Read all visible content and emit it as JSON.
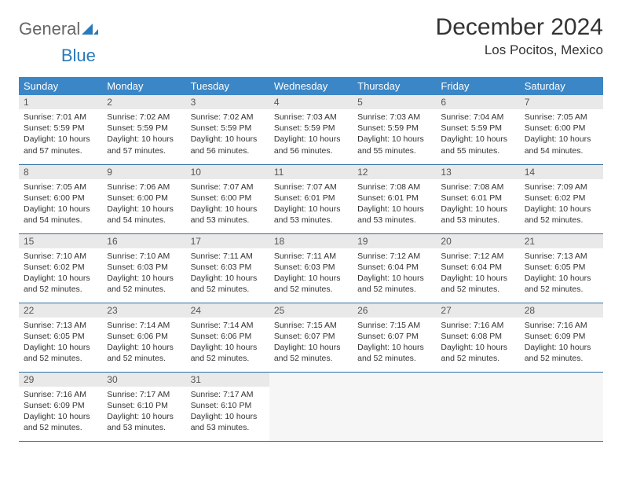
{
  "brand": {
    "part1": "General",
    "part2": "Blue"
  },
  "title": "December 2024",
  "location": "Los Pocitos, Mexico",
  "colors": {
    "header_bg": "#3b86c6",
    "header_text": "#ffffff",
    "row_border": "#2f6fa3",
    "daynum_bg": "#e9e9e9",
    "logo_accent": "#2a7ab9"
  },
  "weekdays": [
    "Sunday",
    "Monday",
    "Tuesday",
    "Wednesday",
    "Thursday",
    "Friday",
    "Saturday"
  ],
  "days": [
    {
      "n": "1",
      "sunrise": "7:01 AM",
      "sunset": "5:59 PM",
      "daylight": "10 hours and 57 minutes."
    },
    {
      "n": "2",
      "sunrise": "7:02 AM",
      "sunset": "5:59 PM",
      "daylight": "10 hours and 57 minutes."
    },
    {
      "n": "3",
      "sunrise": "7:02 AM",
      "sunset": "5:59 PM",
      "daylight": "10 hours and 56 minutes."
    },
    {
      "n": "4",
      "sunrise": "7:03 AM",
      "sunset": "5:59 PM",
      "daylight": "10 hours and 56 minutes."
    },
    {
      "n": "5",
      "sunrise": "7:03 AM",
      "sunset": "5:59 PM",
      "daylight": "10 hours and 55 minutes."
    },
    {
      "n": "6",
      "sunrise": "7:04 AM",
      "sunset": "5:59 PM",
      "daylight": "10 hours and 55 minutes."
    },
    {
      "n": "7",
      "sunrise": "7:05 AM",
      "sunset": "6:00 PM",
      "daylight": "10 hours and 54 minutes."
    },
    {
      "n": "8",
      "sunrise": "7:05 AM",
      "sunset": "6:00 PM",
      "daylight": "10 hours and 54 minutes."
    },
    {
      "n": "9",
      "sunrise": "7:06 AM",
      "sunset": "6:00 PM",
      "daylight": "10 hours and 54 minutes."
    },
    {
      "n": "10",
      "sunrise": "7:07 AM",
      "sunset": "6:00 PM",
      "daylight": "10 hours and 53 minutes."
    },
    {
      "n": "11",
      "sunrise": "7:07 AM",
      "sunset": "6:01 PM",
      "daylight": "10 hours and 53 minutes."
    },
    {
      "n": "12",
      "sunrise": "7:08 AM",
      "sunset": "6:01 PM",
      "daylight": "10 hours and 53 minutes."
    },
    {
      "n": "13",
      "sunrise": "7:08 AM",
      "sunset": "6:01 PM",
      "daylight": "10 hours and 53 minutes."
    },
    {
      "n": "14",
      "sunrise": "7:09 AM",
      "sunset": "6:02 PM",
      "daylight": "10 hours and 52 minutes."
    },
    {
      "n": "15",
      "sunrise": "7:10 AM",
      "sunset": "6:02 PM",
      "daylight": "10 hours and 52 minutes."
    },
    {
      "n": "16",
      "sunrise": "7:10 AM",
      "sunset": "6:03 PM",
      "daylight": "10 hours and 52 minutes."
    },
    {
      "n": "17",
      "sunrise": "7:11 AM",
      "sunset": "6:03 PM",
      "daylight": "10 hours and 52 minutes."
    },
    {
      "n": "18",
      "sunrise": "7:11 AM",
      "sunset": "6:03 PM",
      "daylight": "10 hours and 52 minutes."
    },
    {
      "n": "19",
      "sunrise": "7:12 AM",
      "sunset": "6:04 PM",
      "daylight": "10 hours and 52 minutes."
    },
    {
      "n": "20",
      "sunrise": "7:12 AM",
      "sunset": "6:04 PM",
      "daylight": "10 hours and 52 minutes."
    },
    {
      "n": "21",
      "sunrise": "7:13 AM",
      "sunset": "6:05 PM",
      "daylight": "10 hours and 52 minutes."
    },
    {
      "n": "22",
      "sunrise": "7:13 AM",
      "sunset": "6:05 PM",
      "daylight": "10 hours and 52 minutes."
    },
    {
      "n": "23",
      "sunrise": "7:14 AM",
      "sunset": "6:06 PM",
      "daylight": "10 hours and 52 minutes."
    },
    {
      "n": "24",
      "sunrise": "7:14 AM",
      "sunset": "6:06 PM",
      "daylight": "10 hours and 52 minutes."
    },
    {
      "n": "25",
      "sunrise": "7:15 AM",
      "sunset": "6:07 PM",
      "daylight": "10 hours and 52 minutes."
    },
    {
      "n": "26",
      "sunrise": "7:15 AM",
      "sunset": "6:07 PM",
      "daylight": "10 hours and 52 minutes."
    },
    {
      "n": "27",
      "sunrise": "7:16 AM",
      "sunset": "6:08 PM",
      "daylight": "10 hours and 52 minutes."
    },
    {
      "n": "28",
      "sunrise": "7:16 AM",
      "sunset": "6:09 PM",
      "daylight": "10 hours and 52 minutes."
    },
    {
      "n": "29",
      "sunrise": "7:16 AM",
      "sunset": "6:09 PM",
      "daylight": "10 hours and 52 minutes."
    },
    {
      "n": "30",
      "sunrise": "7:17 AM",
      "sunset": "6:10 PM",
      "daylight": "10 hours and 53 minutes."
    },
    {
      "n": "31",
      "sunrise": "7:17 AM",
      "sunset": "6:10 PM",
      "daylight": "10 hours and 53 minutes."
    }
  ],
  "labels": {
    "sunrise": "Sunrise: ",
    "sunset": "Sunset: ",
    "daylight": "Daylight: "
  }
}
